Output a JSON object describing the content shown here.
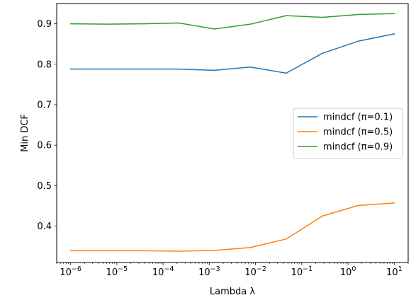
{
  "chart_data": {
    "type": "line",
    "xscale": "log",
    "xlabel": "Lambda λ",
    "ylabel": "Min DCF",
    "xlim": [
      5e-07,
      20
    ],
    "ylim": [
      0.31,
      0.95
    ],
    "x": [
      1e-06,
      6e-06,
      3.6e-05,
      0.00022,
      0.0013,
      0.0077,
      0.046,
      0.28,
      1.67,
      10
    ],
    "xtick_values": [
      1e-06,
      1e-05,
      0.0001,
      0.001,
      0.01,
      0.1,
      1,
      10
    ],
    "xtick_labels": [
      {
        "base": "10",
        "exp": "−6"
      },
      {
        "base": "10",
        "exp": "−5"
      },
      {
        "base": "10",
        "exp": "−4"
      },
      {
        "base": "10",
        "exp": "−3"
      },
      {
        "base": "10",
        "exp": "−2"
      },
      {
        "base": "10",
        "exp": "−1"
      },
      {
        "base": "10",
        "exp": "0"
      },
      {
        "base": "10",
        "exp": "1"
      }
    ],
    "ytick_values": [
      0.4,
      0.5,
      0.6,
      0.7,
      0.8,
      0.9
    ],
    "ytick_labels": [
      "0.4",
      "0.5",
      "0.6",
      "0.7",
      "0.8",
      "0.9"
    ],
    "legend_position": "center-right",
    "grid": false,
    "series": [
      {
        "name": "mindcf (π=0.1)",
        "color": "#1f77b4",
        "values": [
          0.788,
          0.788,
          0.788,
          0.788,
          0.785,
          0.793,
          0.778,
          0.827,
          0.857,
          0.875
        ]
      },
      {
        "name": "mindcf (π=0.5)",
        "color": "#ff7f0e",
        "values": [
          0.339,
          0.339,
          0.339,
          0.338,
          0.34,
          0.347,
          0.368,
          0.425,
          0.451,
          0.457
        ]
      },
      {
        "name": "mindcf (π=0.9)",
        "color": "#2ca02c",
        "values": [
          0.9,
          0.899,
          0.9,
          0.902,
          0.887,
          0.899,
          0.92,
          0.916,
          0.923,
          0.925
        ]
      }
    ]
  }
}
